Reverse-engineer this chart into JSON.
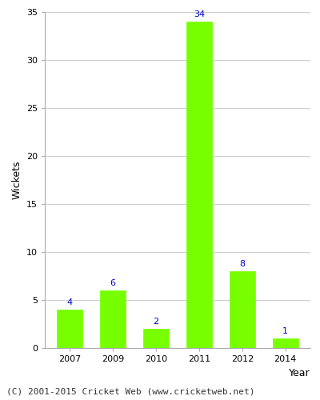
{
  "categories": [
    "2007",
    "2009",
    "2010",
    "2011",
    "2012",
    "2014"
  ],
  "values": [
    4,
    6,
    2,
    34,
    8,
    1
  ],
  "bar_color": "#77ff00",
  "bar_edge_color": "#77ff00",
  "label_color": "#0000cc",
  "label_fontsize": 8,
  "ylabel": "Wickets",
  "xlabel": "Year",
  "ylim": [
    0,
    35
  ],
  "yticks": [
    0,
    5,
    10,
    15,
    20,
    25,
    30,
    35
  ],
  "footnote": "(C) 2001-2015 Cricket Web (www.cricketweb.net)",
  "footnote_fontsize": 8,
  "background_color": "#ffffff",
  "grid_color": "#cccccc",
  "bar_width": 0.6
}
